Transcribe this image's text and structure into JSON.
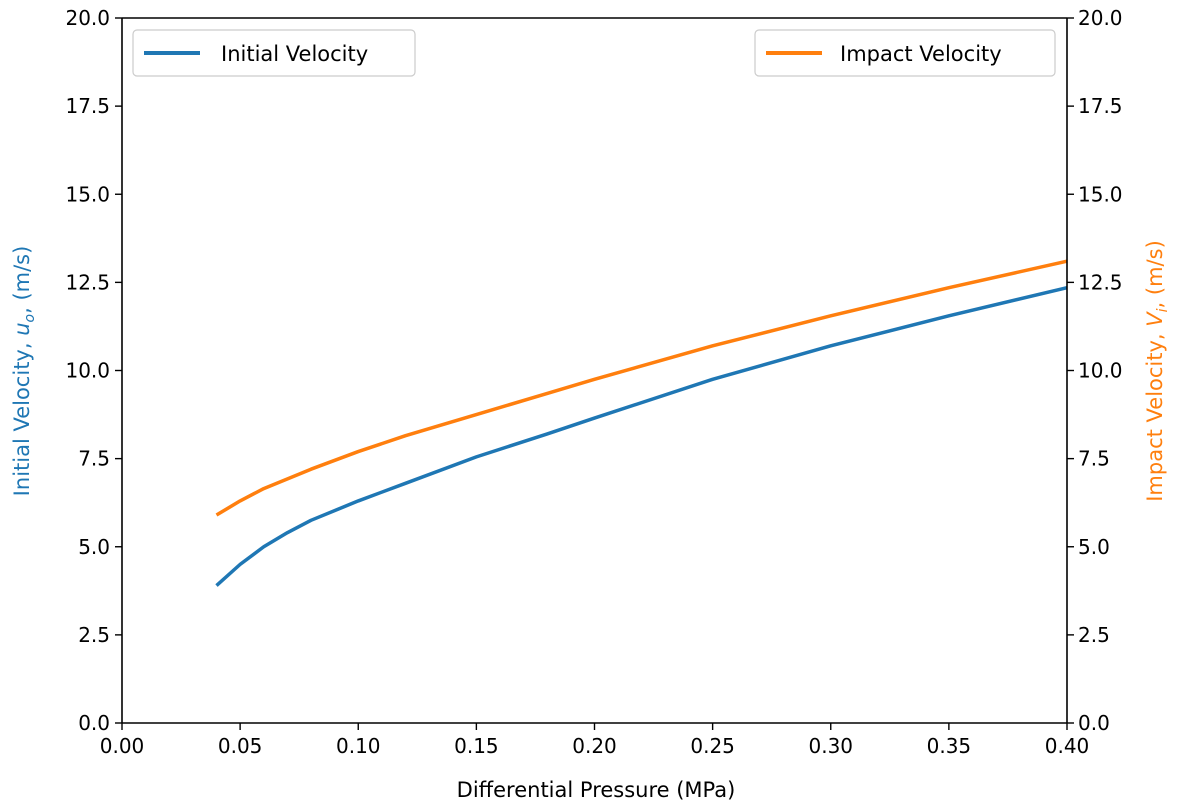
{
  "chart_data": {
    "type": "line",
    "xlabel": "Differential Pressure (MPa)",
    "ylabel_left": {
      "prefix": "Initial Velocity, ",
      "symbol": "u",
      "subscript": "o",
      "suffix": ", (m/s)"
    },
    "ylabel_right": {
      "prefix": "Impact Velocity, ",
      "symbol": "V",
      "subscript": "i",
      "suffix": ", (m/s)"
    },
    "xlim": [
      0.0,
      0.4
    ],
    "ylim_left": [
      0.0,
      20.0
    ],
    "ylim_right": [
      0.0,
      20.0
    ],
    "xticks": [
      "0.00",
      "0.05",
      "0.10",
      "0.15",
      "0.20",
      "0.25",
      "0.30",
      "0.35",
      "0.40"
    ],
    "yticks_left": [
      "0.0",
      "2.5",
      "5.0",
      "7.5",
      "10.0",
      "12.5",
      "15.0",
      "17.5",
      "20.0"
    ],
    "yticks_right": [
      "0.0",
      "2.5",
      "5.0",
      "7.5",
      "10.0",
      "12.5",
      "15.0",
      "17.5",
      "20.0"
    ],
    "grid": false,
    "series": [
      {
        "name": "Initial Velocity",
        "axis": "left",
        "color": "#1f77b4",
        "legend_position": "top-left",
        "x": [
          0.04,
          0.05,
          0.06,
          0.07,
          0.08,
          0.1,
          0.12,
          0.15,
          0.18,
          0.2,
          0.25,
          0.3,
          0.35,
          0.4
        ],
        "y": [
          3.9,
          4.5,
          5.0,
          5.4,
          5.75,
          6.3,
          6.8,
          7.55,
          8.2,
          8.65,
          9.75,
          10.7,
          11.55,
          12.35
        ]
      },
      {
        "name": "Impact Velocity",
        "axis": "right",
        "color": "#ff7f0e",
        "legend_position": "top-right",
        "x": [
          0.04,
          0.05,
          0.06,
          0.08,
          0.1,
          0.12,
          0.15,
          0.18,
          0.2,
          0.25,
          0.3,
          0.35,
          0.4
        ],
        "y": [
          5.9,
          6.3,
          6.65,
          7.2,
          7.7,
          8.15,
          8.75,
          9.35,
          9.75,
          10.7,
          11.55,
          12.35,
          13.1
        ]
      }
    ]
  }
}
